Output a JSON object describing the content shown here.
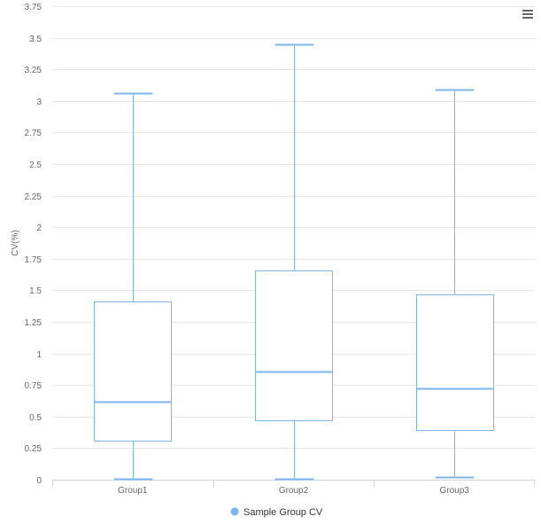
{
  "chart_data": {
    "type": "boxplot",
    "ylabel": "CV(%)",
    "ylim": [
      0,
      3.75
    ],
    "yticks": [
      "0",
      "0.25",
      "0.5",
      "0.75",
      "1",
      "1.25",
      "1.5",
      "1.75",
      "2",
      "2.25",
      "2.5",
      "2.75",
      "3",
      "3.25",
      "3.5",
      "3.75"
    ],
    "categories": [
      "Group1",
      "Group2",
      "Group3"
    ],
    "series": [
      {
        "name": "Sample Group CV",
        "color": "#7cb5ec",
        "boxes": [
          {
            "low": 0.01,
            "q1": 0.31,
            "median": 0.62,
            "q3": 1.41,
            "high": 3.06
          },
          {
            "low": 0.01,
            "q1": 0.47,
            "median": 0.86,
            "q3": 1.66,
            "high": 3.45
          },
          {
            "low": 0.02,
            "q1": 0.39,
            "median": 0.72,
            "q3": 1.47,
            "high": 3.09
          }
        ]
      }
    ],
    "grid": true,
    "legend_position": "bottom-center"
  },
  "menu": {
    "icon": "hamburger-menu-icon"
  }
}
